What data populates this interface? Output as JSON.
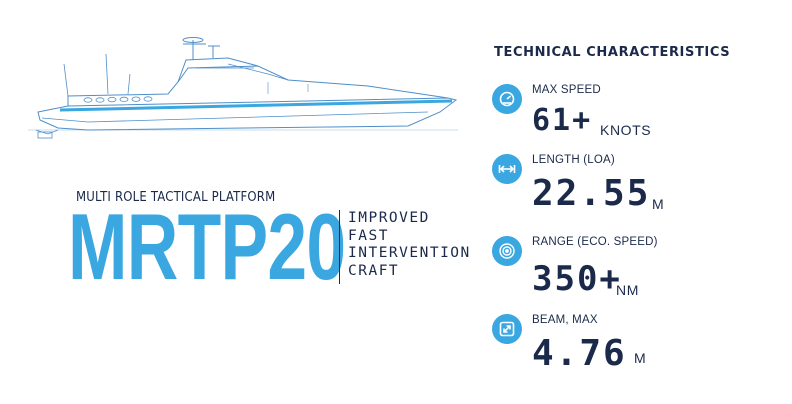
{
  "title": {
    "subtitle": "MULTI ROLE TACTICAL PLATFORM",
    "model": "MRTP20",
    "description": [
      "IMPROVED",
      "FAST",
      "INTERVENTION",
      "CRAFT"
    ]
  },
  "tech": {
    "heading": "TECHNICAL CHARACTERISTICS",
    "specs": [
      {
        "label": "MAX SPEED",
        "value": "61+",
        "unit": "KNOTS",
        "icon": "speedometer-icon"
      },
      {
        "label": "LENGTH (LOA)",
        "value": "22.55",
        "unit": "M",
        "icon": "arrows-horizontal-icon"
      },
      {
        "label": "RANGE (ECO. SPEED)",
        "value": "350+",
        "unit": "NM",
        "icon": "range-radar-icon"
      },
      {
        "label": "BEAM, MAX",
        "value": "4.76",
        "unit": "M",
        "icon": "arrows-diagonal-icon"
      }
    ]
  },
  "colors": {
    "accent": "#3aa7e0",
    "text": "#1b2a4a",
    "sketch": "#4f8fc9"
  }
}
